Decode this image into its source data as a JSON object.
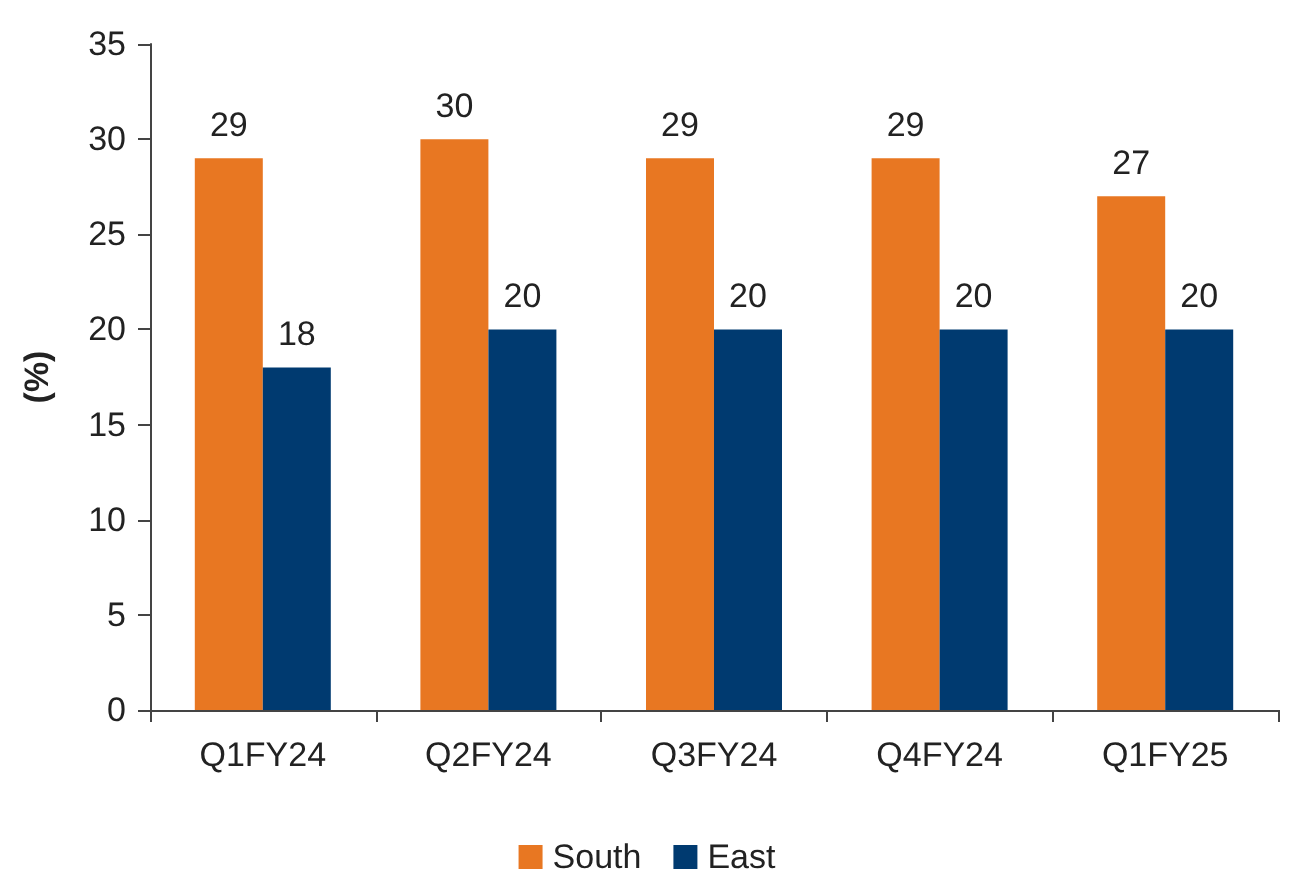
{
  "chart_data": {
    "type": "bar",
    "ylabel": "(%)",
    "categories": [
      "Q1FY24",
      "Q2FY24",
      "Q3FY24",
      "Q4FY24",
      "Q1FY25"
    ],
    "series": [
      {
        "name": "South",
        "color": "#e87722",
        "values": [
          29,
          30,
          29,
          29,
          27
        ]
      },
      {
        "name": "East",
        "color": "#003a70",
        "values": [
          18,
          20,
          20,
          20,
          20
        ]
      }
    ],
    "ylim": [
      0,
      35
    ],
    "yticks": [
      0,
      5,
      10,
      15,
      20,
      25,
      30,
      35
    ],
    "grid": false,
    "legend": "bottom",
    "data_labels": true
  }
}
